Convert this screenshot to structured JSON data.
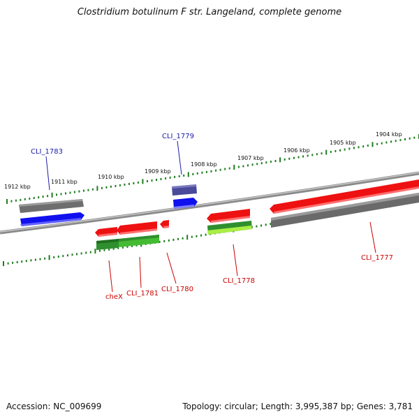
{
  "title": "Clostridium botulinum F str. Langeland, complete genome",
  "footer": {
    "accession": "Accession: NC_009699",
    "stats": "Topology: circular; Length: 3,995,387 bp; Genes: 3,781"
  },
  "scale_labels": [
    "1912 kbp",
    "1911 kbp",
    "1910 kbp",
    "1909 kbp",
    "1908 kbp",
    "1907 kbp",
    "1906 kbp",
    "1905 kbp",
    "1904 kbp"
  ],
  "gene_labels": {
    "top": [
      "CLI_1783",
      "CLI_1779"
    ],
    "bottom": [
      "cheX",
      "CLI_1781",
      "CLI_1780",
      "CLI_1778",
      "CLI_1777"
    ]
  },
  "colors": {
    "backbone": "#7a7a7a",
    "scale_ticks": "#1e7d1e",
    "label_blue": "#1a1aa8",
    "label_red": "#cc0000",
    "gene_red": "#ee1111",
    "gene_blue": "#1010ee",
    "gene_gray": "#6a6a6a",
    "gene_green_dark": "#2f8f2f",
    "gene_green_light": "#55cc44",
    "gene_lime": "#aaee44",
    "gene_navy": "#4a4a9a"
  }
}
